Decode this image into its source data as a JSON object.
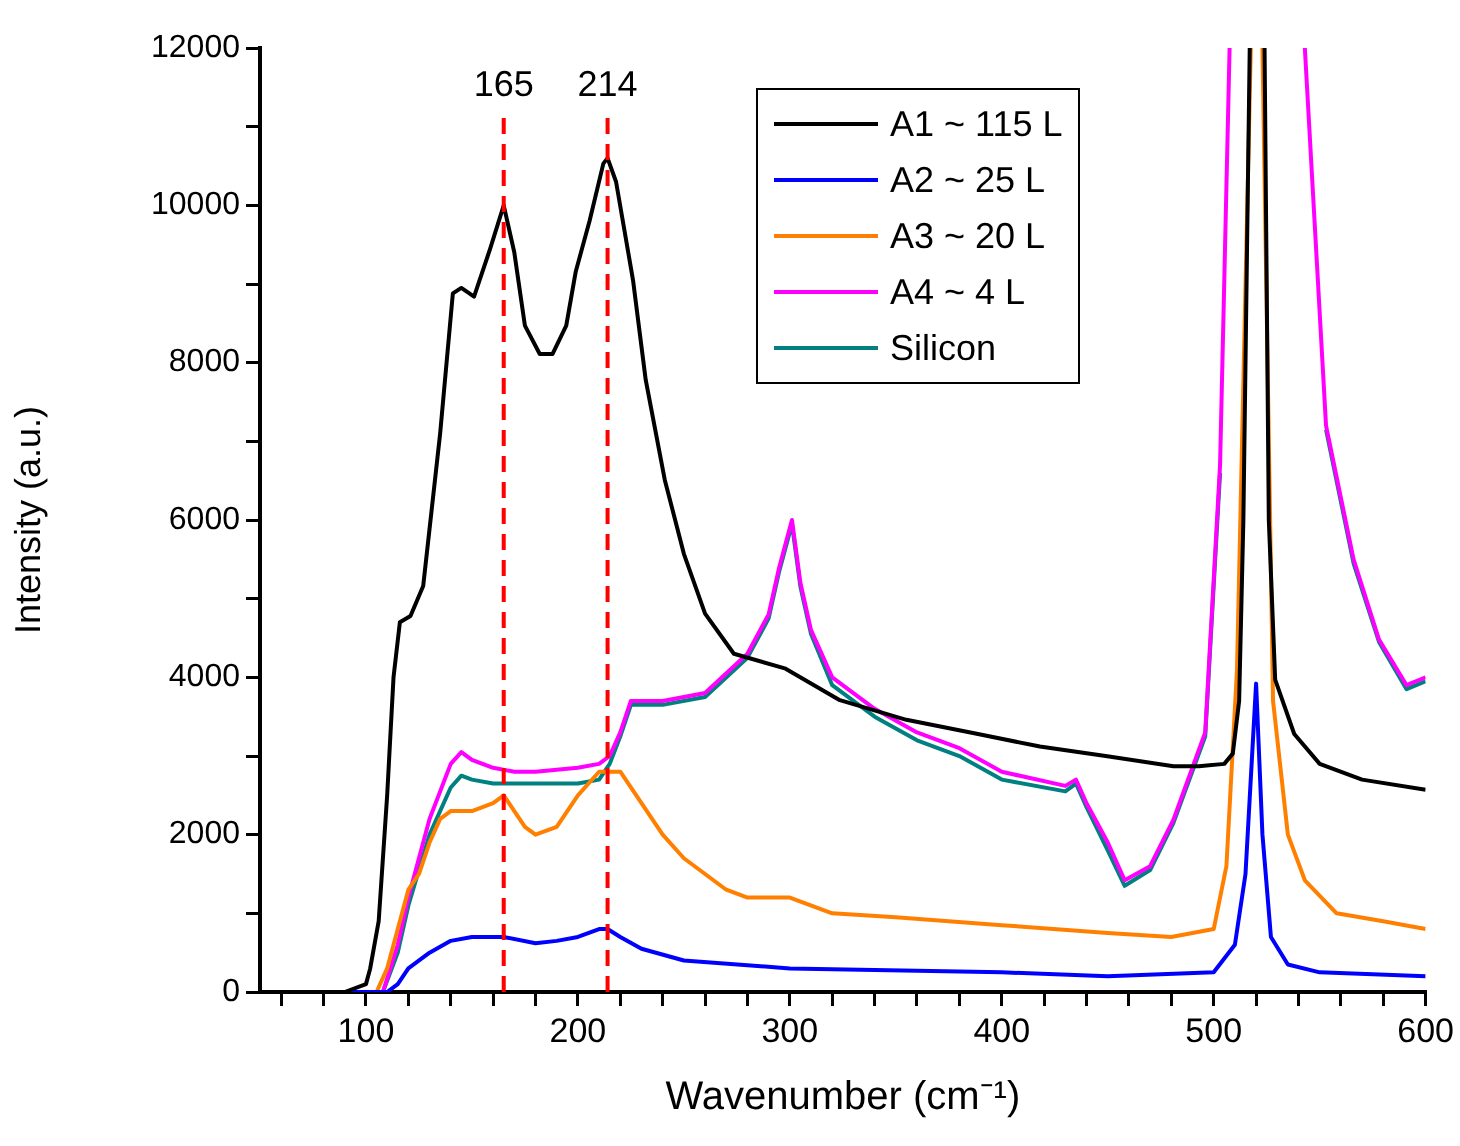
{
  "chart_data": {
    "type": "line",
    "xlabel": "Wavenumber (cm⁻¹)",
    "ylabel": "Intensity (a.u.)",
    "xlim": [
      50,
      600
    ],
    "ylim": [
      0,
      12000
    ],
    "xticks": [
      {
        "value": 60,
        "label": null
      },
      {
        "value": 80,
        "label": null
      },
      100,
      {
        "value": 120,
        "label": null
      },
      {
        "value": 140,
        "label": null
      },
      {
        "value": 160,
        "label": null
      },
      {
        "value": 180,
        "label": null
      },
      200,
      {
        "value": 220,
        "label": null
      },
      {
        "value": 240,
        "label": null
      },
      {
        "value": 260,
        "label": null
      },
      {
        "value": 280,
        "label": null
      },
      300,
      {
        "value": 320,
        "label": null
      },
      {
        "value": 340,
        "label": null
      },
      {
        "value": 360,
        "label": null
      },
      {
        "value": 380,
        "label": null
      },
      400,
      {
        "value": 420,
        "label": null
      },
      {
        "value": 440,
        "label": null
      },
      {
        "value": 460,
        "label": null
      },
      {
        "value": 480,
        "label": null
      },
      500,
      {
        "value": 520,
        "label": null
      },
      {
        "value": 540,
        "label": null
      },
      {
        "value": 560,
        "label": null
      },
      {
        "value": 580,
        "label": null
      },
      600
    ],
    "yticks": [
      0,
      {
        "value": 1000,
        "label": null
      },
      2000,
      {
        "value": 3000,
        "label": null
      },
      4000,
      {
        "value": 5000,
        "label": null
      },
      6000,
      {
        "value": 7000,
        "label": null
      },
      8000,
      {
        "value": 9000,
        "label": null
      },
      10000,
      {
        "value": 11000,
        "label": null
      },
      12000
    ],
    "grid": false,
    "legend": "top right",
    "marker": "none",
    "line_style": "solid",
    "ref_lines": [
      {
        "axis": "x",
        "value": 165,
        "label": "165",
        "color": "#ff0000",
        "line_style": "dashed"
      },
      {
        "axis": "x",
        "value": 214,
        "label": "214",
        "color": "#ff0000",
        "line_style": "dashed"
      }
    ],
    "series": [
      {
        "name": "A1 ~ 115 L",
        "color": "#000000",
        "x": [
          50,
          70,
          90,
          100,
          102,
          106,
          110,
          113,
          116,
          121,
          127,
          135,
          141,
          145,
          151,
          158.5,
          165,
          170,
          175,
          182,
          188,
          194.5,
          199,
          205.5,
          212,
          214,
          218,
          226,
          232,
          241,
          250,
          260,
          273.6,
          298,
          323.6,
          355,
          387,
          418,
          449,
          481,
          493,
          505,
          509,
          512,
          514,
          517,
          520,
          524,
          526,
          529,
          538,
          550,
          570,
          600
        ],
        "values": [
          0,
          0,
          0,
          100,
          300,
          900,
          2500,
          4000,
          4700,
          4780,
          5160,
          7100,
          8880,
          8950,
          8840,
          9440,
          10000,
          9400,
          8470,
          8110,
          8110,
          8470,
          9160,
          9800,
          10530,
          10600,
          10300,
          9050,
          7780,
          6510,
          5570,
          4810,
          4300,
          4110,
          3710,
          3460,
          3290,
          3120,
          3000,
          2870,
          2870,
          2900,
          3030,
          3700,
          6000,
          12000,
          null,
          12000,
          6000,
          3970,
          3280,
          2900,
          2700,
          2570
        ]
      },
      {
        "name": "A2 ~ 25 L",
        "color": "#0000ff",
        "x": [
          50,
          100,
          110,
          115,
          120,
          130,
          140,
          150,
          165,
          180,
          190,
          200,
          210,
          214,
          220,
          230,
          250,
          300,
          400,
          450,
          500,
          510,
          515,
          520,
          523,
          527,
          535,
          550,
          600
        ],
        "values": [
          0,
          0,
          0,
          100,
          300,
          500,
          650,
          700,
          700,
          620,
          650,
          700,
          800,
          800,
          700,
          550,
          400,
          300,
          250,
          200,
          250,
          600,
          1500,
          3920,
          2000,
          700,
          350,
          250,
          200
        ]
      },
      {
        "name": "A3 ~ 20 L",
        "color": "#ff8000",
        "x": [
          50,
          100,
          105,
          110,
          115,
          120,
          125,
          130,
          135,
          140,
          150,
          160,
          165,
          170,
          175,
          180,
          190,
          200,
          210,
          220,
          230,
          240,
          250,
          260,
          270,
          280,
          300,
          320,
          350,
          400,
          450,
          480,
          500,
          506,
          511,
          517.5,
          520,
          523,
          528,
          535,
          543,
          558,
          580,
          600
        ],
        "values": [
          0,
          0,
          0,
          300,
          800,
          1300,
          1500,
          1900,
          2200,
          2300,
          2300,
          2400,
          2500,
          2300,
          2100,
          2000,
          2100,
          2500,
          2800,
          2800,
          2400,
          2000,
          1700,
          1500,
          1300,
          1200,
          1200,
          1000,
          950,
          850,
          750,
          700,
          800,
          1600,
          4100,
          12000,
          null,
          12000,
          3700,
          2000,
          1420,
          1000,
          900,
          800
        ]
      },
      {
        "name": "A4 ~ 4 L",
        "color": "#ff00ff",
        "x": [
          50,
          100,
          108,
          115,
          120,
          130,
          140,
          145,
          150,
          160,
          170,
          180,
          200,
          210,
          215,
          220,
          225,
          240,
          260,
          280,
          290,
          295,
          301,
          305,
          310,
          320,
          340,
          360,
          380,
          400,
          430,
          435,
          440,
          450,
          458,
          470,
          481,
          496,
          503,
          507.5,
          525,
          543,
          553,
          566,
          578,
          591,
          600
        ],
        "values": [
          0,
          0,
          0,
          600,
          1200,
          2200,
          2900,
          3050,
          2950,
          2850,
          2800,
          2800,
          2850,
          2900,
          3000,
          3300,
          3700,
          3700,
          3800,
          4300,
          4800,
          5400,
          6000,
          5200,
          4600,
          4000,
          3600,
          3300,
          3100,
          2800,
          2620,
          2700,
          2400,
          1900,
          1420,
          1600,
          2190,
          3300,
          6700,
          12000,
          null,
          12000,
          7200,
          5500,
          4480,
          3900,
          4000
        ]
      },
      {
        "name": "Silicon",
        "color": "#008080",
        "x": [
          50,
          100,
          108,
          115,
          120,
          130,
          140,
          145,
          150,
          160,
          170,
          180,
          200,
          210,
          215,
          220,
          225,
          240,
          260,
          280,
          290,
          295,
          301,
          305,
          310,
          320,
          340,
          360,
          380,
          400,
          430,
          435,
          440,
          450,
          458,
          470,
          481,
          496,
          503,
          507.5,
          525,
          543,
          553,
          566,
          578,
          591,
          600
        ],
        "values": [
          0,
          0,
          0,
          500,
          1100,
          2000,
          2600,
          2750,
          2700,
          2650,
          2650,
          2650,
          2650,
          2700,
          2900,
          3250,
          3650,
          3650,
          3750,
          4250,
          4750,
          5350,
          5950,
          5150,
          4550,
          3900,
          3500,
          3200,
          3000,
          2700,
          2550,
          2650,
          2350,
          1800,
          1350,
          1550,
          2150,
          3250,
          6600,
          null,
          null,
          null,
          7150,
          5450,
          4450,
          3850,
          3950
        ]
      }
    ]
  }
}
